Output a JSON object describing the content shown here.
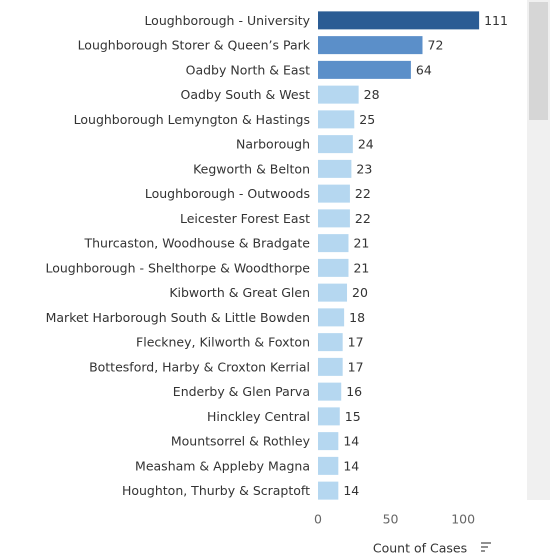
{
  "chart_data": {
    "type": "hbar",
    "categories": [
      "Loughborough - University",
      "Loughborough Storer & Queen’s Park",
      "Oadby North & East",
      "Oadby South & West",
      "Loughborough Lemyngton & Hastings",
      "Narborough",
      "Kegworth & Belton",
      "Loughborough - Outwoods",
      "Leicester Forest East",
      "Thurcaston, Woodhouse & Bradgate",
      "Loughborough - Shelthorpe & Woodthorpe",
      "Kibworth & Great Glen",
      "Market Harborough South & Little Bowden",
      "Fleckney, Kilworth & Foxton",
      "Bottesford, Harby & Croxton Kerrial",
      "Enderby & Glen Parva",
      "Hinckley Central",
      "Mountsorrel & Rothley",
      "Measham & Appleby Magna",
      "Houghton, Thurby & Scraptoft"
    ],
    "values": [
      111,
      72,
      64,
      28,
      25,
      24,
      23,
      22,
      22,
      21,
      21,
      20,
      18,
      17,
      17,
      16,
      15,
      14,
      14,
      14
    ],
    "colors": [
      "#2b5c94",
      "#5b8fc9",
      "#5b8fc9",
      "#b5d7f0",
      "#b5d7f0",
      "#b5d7f0",
      "#b5d7f0",
      "#b5d7f0",
      "#b5d7f0",
      "#b5d7f0",
      "#b5d7f0",
      "#b5d7f0",
      "#b5d7f0",
      "#b5d7f0",
      "#b5d7f0",
      "#b5d7f0",
      "#b5d7f0",
      "#b5d7f0",
      "#b5d7f0",
      "#b5d7f0"
    ],
    "x_label": "Count of Cases",
    "xlim": [
      0,
      144
    ],
    "xticks": [
      0,
      50,
      100
    ]
  }
}
